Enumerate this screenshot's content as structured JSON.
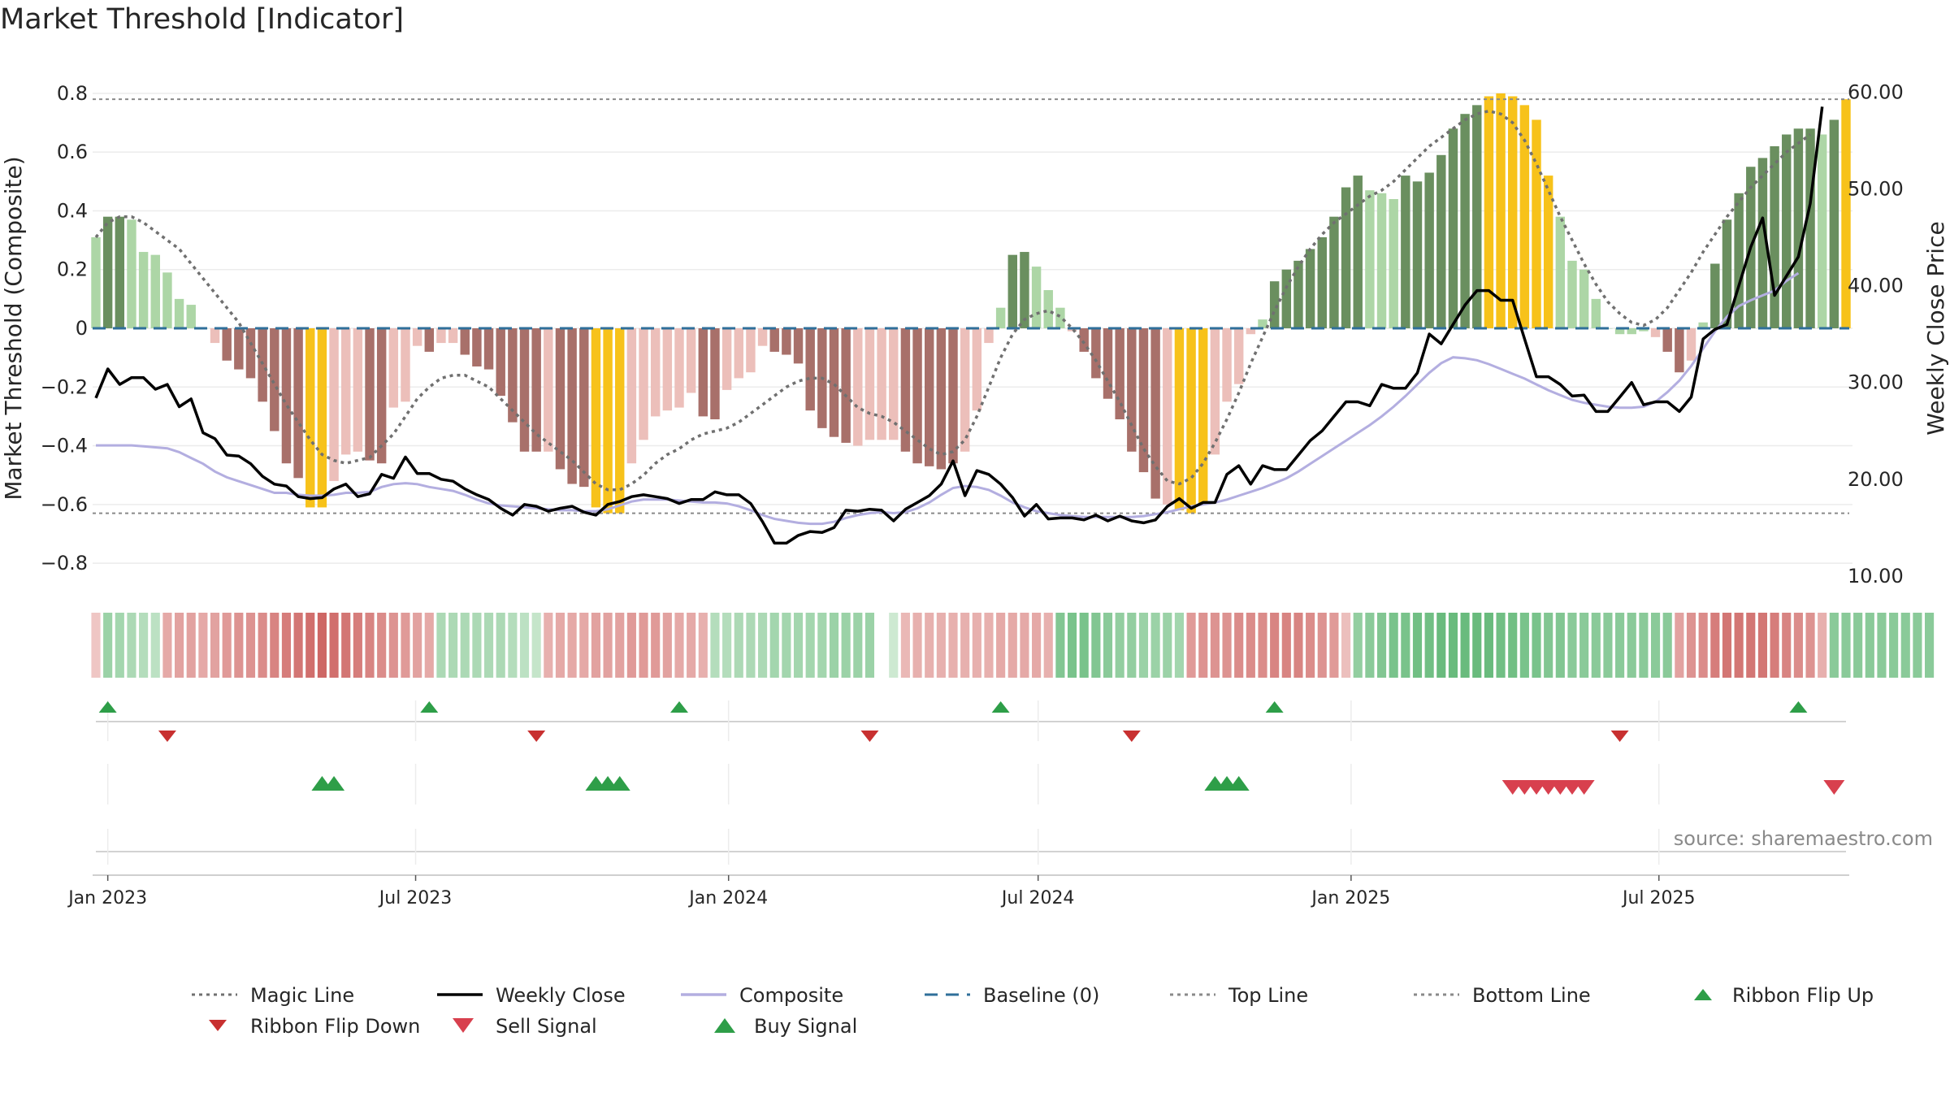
{
  "title": "Market Threshold [Indicator]",
  "source": "source: sharemaestro.com",
  "colors": {
    "magic_line": "#707070",
    "weekly_close": "#000000",
    "composite": "#b3aee0",
    "baseline": "#2f6f9a",
    "top_line": "#8a8a8a",
    "bottom_line": "#8a8a8a",
    "pos_strong": "#6a8f5f",
    "pos_weak": "#add6a6",
    "neg_strong": "#a8706a",
    "neg_weak": "#ecbfba",
    "extreme": "#f7c21a",
    "flip_up": "#2e9e48",
    "flip_down": "#c83030",
    "sell": "#d8404e",
    "buy": "#2e9e48"
  },
  "chart_data": {
    "type": "bar",
    "title": "Market Threshold [Indicator]",
    "xlabel": "",
    "ylabel": "Market Threshold (Composite)",
    "y2label": "Weekly Close Price",
    "ylim": [
      -0.88,
      0.88
    ],
    "y2lim": [
      8.9,
      62.3
    ],
    "yticks": [
      "−0.8",
      "−0.6",
      "−0.4",
      "−0.2",
      "0",
      "0.2",
      "0.4",
      "0.6",
      "0.8"
    ],
    "y2ticks": [
      "10.00",
      "20.00",
      "30.00",
      "40.00",
      "50.00",
      "60.00"
    ],
    "xticks": [
      "Jan 2023",
      "Jul 2023",
      "Jan 2024",
      "Jul 2024",
      "Jan 2025",
      "Jul 2025"
    ],
    "xtick_dates": [
      "2023-01-01",
      "2023-07-01",
      "2024-01-01",
      "2024-07-01",
      "2025-01-01",
      "2025-07-01"
    ],
    "first_week": "2022-12-25",
    "top_line": 0.78,
    "bottom_line": -0.63,
    "baseline": 0,
    "legend_position": "bottom",
    "legend": [
      "Magic Line",
      "Weekly Close",
      "Composite",
      "Baseline (0)",
      "Top Line",
      "Bottom Line",
      "Ribbon Flip Up",
      "Ribbon Flip Down",
      "Sell Signal",
      "Buy Signal"
    ],
    "bars": [
      0.31,
      0.38,
      0.38,
      0.37,
      0.26,
      0.25,
      0.19,
      0.1,
      0.08,
      0,
      -0.05,
      -0.11,
      -0.14,
      -0.17,
      -0.25,
      -0.35,
      -0.46,
      -0.51,
      -0.61,
      -0.61,
      -0.52,
      -0.43,
      -0.42,
      -0.45,
      -0.46,
      -0.27,
      -0.25,
      -0.06,
      -0.08,
      -0.05,
      -0.05,
      -0.09,
      -0.13,
      -0.14,
      -0.23,
      -0.32,
      -0.42,
      -0.42,
      -0.42,
      -0.48,
      -0.53,
      -0.54,
      -0.61,
      -0.63,
      -0.63,
      -0.46,
      -0.38,
      -0.3,
      -0.28,
      -0.27,
      -0.22,
      -0.3,
      -0.31,
      -0.21,
      -0.17,
      -0.15,
      -0.06,
      -0.08,
      -0.09,
      -0.12,
      -0.28,
      -0.34,
      -0.37,
      -0.39,
      -0.4,
      -0.38,
      -0.38,
      -0.38,
      -0.42,
      -0.46,
      -0.47,
      -0.48,
      -0.46,
      -0.42,
      -0.28,
      -0.05,
      0.07,
      0.25,
      0.26,
      0.21,
      0.13,
      0.07,
      -0.01,
      -0.08,
      -0.17,
      -0.24,
      -0.31,
      -0.42,
      -0.49,
      -0.58,
      -0.6,
      -0.62,
      -0.63,
      -0.6,
      -0.43,
      -0.25,
      -0.19,
      -0.02,
      0.03,
      0.16,
      0.2,
      0.23,
      0.27,
      0.31,
      0.38,
      0.48,
      0.52,
      0.47,
      0.46,
      0.44,
      0.52,
      0.5,
      0.53,
      0.59,
      0.68,
      0.73,
      0.76,
      0.79,
      0.8,
      0.79,
      0.76,
      0.71,
      0.52,
      0.38,
      0.23,
      0.2,
      0.1,
      0,
      -0.02,
      -0.02,
      -0.01,
      -0.03,
      -0.08,
      -0.15,
      -0.11,
      0.02,
      0.22,
      0.37,
      0.46,
      0.55,
      0.58,
      0.62,
      0.66,
      0.68,
      0.68,
      0.66,
      0.71,
      0.78
    ],
    "bar_classes": [
      "pw",
      "ps",
      "ps",
      "pw",
      "pw",
      "pw",
      "pw",
      "pw",
      "pw",
      "pw",
      "nw",
      "ns",
      "ns",
      "ns",
      "ns",
      "ns",
      "ns",
      "ns",
      "ex",
      "ex",
      "nw",
      "nw",
      "nw",
      "ns",
      "ns",
      "nw",
      "nw",
      "nw",
      "ns",
      "nw",
      "nw",
      "ns",
      "ns",
      "ns",
      "ns",
      "ns",
      "ns",
      "ns",
      "nw",
      "ns",
      "ns",
      "ns",
      "ex",
      "ex",
      "ex",
      "nw",
      "nw",
      "nw",
      "nw",
      "nw",
      "nw",
      "ns",
      "ns",
      "nw",
      "nw",
      "nw",
      "nw",
      "ns",
      "ns",
      "ns",
      "ns",
      "ns",
      "ns",
      "ns",
      "nw",
      "nw",
      "nw",
      "nw",
      "ns",
      "ns",
      "ns",
      "ns",
      "ns",
      "nw",
      "nw",
      "nw",
      "pw",
      "ps",
      "ps",
      "pw",
      "pw",
      "pw",
      "nw",
      "ns",
      "ns",
      "ns",
      "ns",
      "ns",
      "ns",
      "ns",
      "nw",
      "ex",
      "ex",
      "ex",
      "nw",
      "nw",
      "nw",
      "nw",
      "pw",
      "ps",
      "ps",
      "ps",
      "ps",
      "ps",
      "ps",
      "ps",
      "ps",
      "pw",
      "pw",
      "pw",
      "ps",
      "ps",
      "ps",
      "ps",
      "ps",
      "ps",
      "ps",
      "ex",
      "ex",
      "ex",
      "ex",
      "ex",
      "ex",
      "pw",
      "pw",
      "pw",
      "pw",
      "pw",
      "pw",
      "pw",
      "pw",
      "nw",
      "ns",
      "ns",
      "nw",
      "pw",
      "ps",
      "ps",
      "ps",
      "ps",
      "ps",
      "ps",
      "ps",
      "ps",
      "ps",
      "pw",
      "ps",
      "ex"
    ],
    "magic_line": [
      0.31,
      0.36,
      0.38,
      0.38,
      0.36,
      0.33,
      0.3,
      0.27,
      0.22,
      0.17,
      0.12,
      0.07,
      0.02,
      -0.05,
      -0.12,
      -0.19,
      -0.26,
      -0.32,
      -0.38,
      -0.43,
      -0.45,
      -0.46,
      -0.45,
      -0.44,
      -0.4,
      -0.36,
      -0.3,
      -0.24,
      -0.2,
      -0.17,
      -0.16,
      -0.16,
      -0.18,
      -0.2,
      -0.24,
      -0.28,
      -0.32,
      -0.36,
      -0.39,
      -0.42,
      -0.45,
      -0.49,
      -0.53,
      -0.55,
      -0.55,
      -0.53,
      -0.5,
      -0.46,
      -0.43,
      -0.41,
      -0.38,
      -0.36,
      -0.35,
      -0.34,
      -0.32,
      -0.29,
      -0.26,
      -0.23,
      -0.2,
      -0.18,
      -0.17,
      -0.17,
      -0.19,
      -0.23,
      -0.27,
      -0.29,
      -0.3,
      -0.32,
      -0.35,
      -0.38,
      -0.41,
      -0.43,
      -0.42,
      -0.38,
      -0.3,
      -0.2,
      -0.1,
      -0.02,
      0.03,
      0.05,
      0.06,
      0.04,
      0,
      -0.05,
      -0.11,
      -0.18,
      -0.25,
      -0.33,
      -0.41,
      -0.47,
      -0.52,
      -0.53,
      -0.51,
      -0.46,
      -0.39,
      -0.31,
      -0.22,
      -0.12,
      -0.03,
      0.06,
      0.14,
      0.21,
      0.27,
      0.32,
      0.36,
      0.39,
      0.42,
      0.45,
      0.47,
      0.5,
      0.54,
      0.58,
      0.62,
      0.65,
      0.68,
      0.71,
      0.73,
      0.74,
      0.73,
      0.7,
      0.64,
      0.56,
      0.47,
      0.38,
      0.3,
      0.22,
      0.15,
      0.09,
      0.05,
      0.02,
      0.01,
      0.03,
      0.07,
      0.13,
      0.19,
      0.26,
      0.32,
      0.38,
      0.43,
      0.48,
      0.52,
      0.56,
      0.6,
      0.63,
      0.66
    ],
    "weekly_close": [
      28.4,
      31.4,
      29.8,
      30.5,
      30.5,
      29.3,
      29.8,
      27.5,
      28.3,
      24.8,
      24.2,
      22.5,
      22.4,
      21.6,
      20.3,
      19.5,
      19.3,
      18.2,
      18.0,
      18.1,
      19.0,
      19.5,
      18.2,
      18.5,
      20.5,
      20.1,
      22.3,
      20.6,
      20.6,
      20.0,
      19.8,
      19.0,
      18.4,
      17.9,
      17.0,
      16.3,
      17.4,
      17.2,
      16.7,
      17.0,
      17.2,
      16.6,
      16.3,
      17.4,
      17.7,
      18.2,
      18.4,
      18.2,
      18.0,
      17.5,
      17.9,
      17.9,
      18.7,
      18.4,
      18.4,
      17.5,
      15.6,
      13.4,
      13.4,
      14.2,
      14.6,
      14.5,
      15.0,
      16.8,
      16.7,
      16.9,
      16.8,
      15.7,
      16.9,
      17.6,
      18.3,
      19.5,
      21.9,
      18.3,
      20.9,
      20.5,
      19.5,
      18.1,
      16.2,
      17.4,
      15.9,
      16.0,
      16.0,
      15.8,
      16.3,
      15.7,
      16.2,
      15.7,
      15.5,
      15.8,
      17.2,
      18.0,
      17.0,
      17.6,
      17.6,
      20.5,
      21.4,
      19.5,
      21.4,
      21.0,
      21.0,
      22.5,
      24.0,
      25.0,
      26.5,
      28.0,
      28.0,
      27.6,
      29.8,
      29.4,
      29.4,
      31.0,
      35.0,
      34.0,
      36.0,
      38.0,
      39.5,
      39.5,
      38.5,
      38.5,
      34.5,
      30.6,
      30.6,
      29.8,
      28.6,
      28.7,
      27.0,
      27.0,
      28.5,
      30.0,
      27.7,
      28.0,
      28.0,
      27.0,
      28.5,
      34.5,
      35.5,
      36.0,
      40.0,
      44.0,
      47.0,
      39.0,
      41.0,
      43.0,
      48.5,
      58.5
    ],
    "composite": [
      23.5,
      23.5,
      23.5,
      23.5,
      23.4,
      23.3,
      23.2,
      22.8,
      22.2,
      21.6,
      20.8,
      20.2,
      19.8,
      19.4,
      19.0,
      18.6,
      18.6,
      18.4,
      18.3,
      18.3,
      18.4,
      18.6,
      18.6,
      18.7,
      19.2,
      19.5,
      19.6,
      19.5,
      19.2,
      19.0,
      18.8,
      18.4,
      17.9,
      17.5,
      17.3,
      17.2,
      17.1,
      17.0,
      16.9,
      16.8,
      16.8,
      16.7,
      16.7,
      16.9,
      17.3,
      17.7,
      17.9,
      17.9,
      17.9,
      17.8,
      17.7,
      17.6,
      17.6,
      17.5,
      17.2,
      16.8,
      16.3,
      15.9,
      15.7,
      15.5,
      15.4,
      15.4,
      15.6,
      16.0,
      16.3,
      16.5,
      16.6,
      16.5,
      16.6,
      17.0,
      17.6,
      18.4,
      19.1,
      19.3,
      19.2,
      18.9,
      18.3,
      17.6,
      17.1,
      16.7,
      16.5,
      16.3,
      16.2,
      16.1,
      16.1,
      16.1,
      16.1,
      16.1,
      16.2,
      16.4,
      16.6,
      16.9,
      17.2,
      17.4,
      17.6,
      17.9,
      18.3,
      18.7,
      19.1,
      19.6,
      20.1,
      20.8,
      21.6,
      22.4,
      23.2,
      24.0,
      24.8,
      25.6,
      26.5,
      27.5,
      28.6,
      29.8,
      31.0,
      32.0,
      32.6,
      32.5,
      32.3,
      31.9,
      31.4,
      30.9,
      30.4,
      29.8,
      29.2,
      28.7,
      28.2,
      27.9,
      27.7,
      27.5,
      27.4,
      27.4,
      27.5,
      28.0,
      29.0,
      30.2,
      31.7,
      33.5,
      35.3,
      36.8,
      37.9,
      38.5,
      39.0,
      39.5,
      40.5,
      41.3
    ],
    "ribbon_strength": [
      -0.15,
      0.45,
      0.4,
      0.35,
      0.3,
      0.25,
      -0.35,
      -0.4,
      -0.4,
      -0.35,
      -0.4,
      -0.45,
      -0.5,
      -0.5,
      -0.55,
      -0.6,
      -0.65,
      -0.7,
      -0.75,
      -0.8,
      -0.75,
      -0.7,
      -0.65,
      -0.6,
      -0.55,
      -0.5,
      -0.45,
      -0.4,
      -0.35,
      0.35,
      0.35,
      0.35,
      0.35,
      0.35,
      0.35,
      0.3,
      0.25,
      0.2,
      -0.3,
      -0.35,
      -0.35,
      -0.35,
      -0.4,
      -0.4,
      -0.4,
      -0.45,
      -0.45,
      -0.45,
      -0.4,
      -0.35,
      -0.35,
      -0.3,
      0.3,
      0.3,
      0.35,
      0.35,
      0.35,
      0.4,
      0.4,
      0.4,
      0.4,
      0.4,
      0.45,
      0.45,
      0.45,
      0.45,
      0.0,
      0.15,
      -0.25,
      -0.3,
      -0.3,
      -0.3,
      -0.3,
      -0.3,
      -0.3,
      -0.3,
      -0.35,
      -0.35,
      -0.35,
      -0.35,
      -0.3,
      0.6,
      0.65,
      0.65,
      0.6,
      0.55,
      0.5,
      0.5,
      0.45,
      0.45,
      0.45,
      0.4,
      -0.45,
      -0.5,
      -0.5,
      -0.5,
      -0.55,
      -0.55,
      -0.55,
      -0.6,
      -0.6,
      -0.6,
      -0.55,
      -0.5,
      -0.45,
      -0.2,
      0.5,
      0.55,
      0.6,
      0.65,
      0.65,
      0.7,
      0.7,
      0.75,
      0.75,
      0.75,
      0.75,
      0.75,
      0.7,
      0.7,
      0.65,
      0.65,
      0.6,
      0.6,
      0.55,
      0.55,
      0.55,
      0.55,
      0.55,
      0.55,
      0.55,
      0.55,
      0.55,
      -0.4,
      -0.5,
      -0.55,
      -0.65,
      -0.7,
      -0.7,
      -0.7,
      -0.7,
      -0.65,
      -0.6,
      -0.55,
      -0.5,
      -0.3,
      0.55,
      0.55,
      0.55,
      0.55,
      0.55,
      0.55,
      0.55,
      0.55,
      0.55
    ],
    "ribbon_flip_up": [
      1,
      28,
      49,
      76,
      99,
      143
    ],
    "ribbon_flip_down": [
      6,
      37,
      65,
      87,
      128
    ],
    "buy_signals": [
      19,
      20,
      42,
      43,
      44,
      94,
      95,
      96
    ],
    "sell_signals": [
      119,
      120,
      121,
      122,
      123,
      124,
      125,
      146
    ]
  },
  "legend_items": [
    {
      "label": "Magic Line",
      "kind": "dotted",
      "color": "#707070"
    },
    {
      "label": "Weekly Close",
      "kind": "solid",
      "color": "#000000"
    },
    {
      "label": "Composite",
      "kind": "solid",
      "color": "#b3aee0"
    },
    {
      "label": "Baseline (0)",
      "kind": "dashed",
      "color": "#2f6f9a"
    },
    {
      "label": "Top Line",
      "kind": "dotted",
      "color": "#8a8a8a"
    },
    {
      "label": "Bottom Line",
      "kind": "dotted",
      "color": "#8a8a8a"
    },
    {
      "label": "Ribbon Flip Up",
      "kind": "tri-up",
      "color": "#2e9e48"
    },
    {
      "label": "Ribbon Flip Down",
      "kind": "tri-down",
      "color": "#c83030"
    },
    {
      "label": "Sell Signal",
      "kind": "tri-down-big",
      "color": "#d8404e"
    },
    {
      "label": "Buy Signal",
      "kind": "tri-up-big",
      "color": "#2e9e48"
    }
  ]
}
